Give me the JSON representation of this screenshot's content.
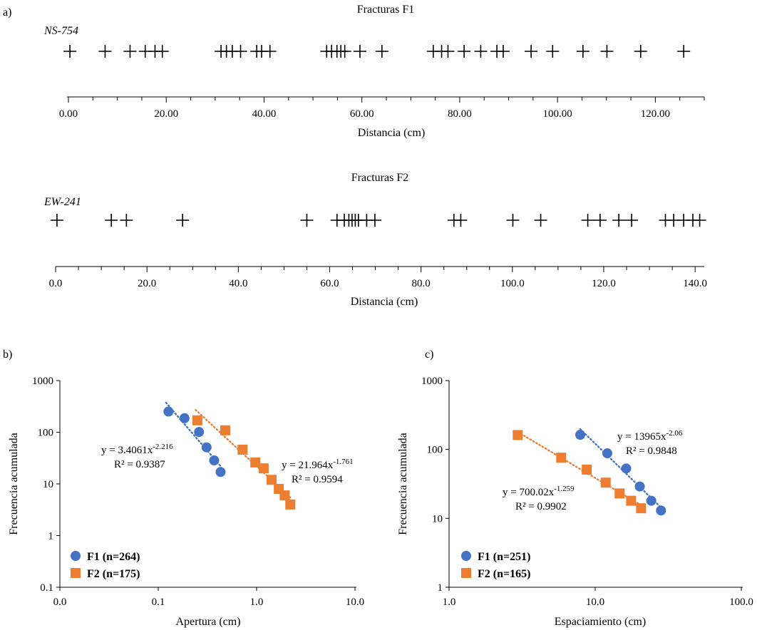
{
  "chart_data": [
    {
      "panel_label": "a)",
      "type": "scatter",
      "title": "Fracturas F1",
      "series_label": "NS-754",
      "xlabel": "Distancia (cm)",
      "xlim": [
        0,
        130
      ],
      "x_ticks": [
        "0.00",
        "20.00",
        "40.00",
        "60.00",
        "80.00",
        "100.00",
        "120.00"
      ],
      "x_tick_values": [
        0,
        20,
        40,
        60,
        80,
        100,
        120
      ],
      "minor_step": 5,
      "marker": "plus",
      "x": [
        0.3,
        7.5,
        12.6,
        15.7,
        17.7,
        19.2,
        31.2,
        32.3,
        33.5,
        35.2,
        38.5,
        39.5,
        41.2,
        52.8,
        53.8,
        54.9,
        55.7,
        56.5,
        59.6,
        64.1,
        74.6,
        76.3,
        77.6,
        80.9,
        84.3,
        87.6,
        88.9,
        94.6,
        99.0,
        105.2,
        110.1,
        117.0,
        125.8
      ]
    },
    {
      "panel_label": "",
      "type": "scatter",
      "title": "Fracturas F2",
      "series_label": "EW-241",
      "xlabel": "Distancia (cm)",
      "xlim": [
        0,
        142
      ],
      "x_ticks": [
        "0.0",
        "20.0",
        "40.0",
        "60.0",
        "80.0",
        "100.0",
        "120.0",
        "140.0"
      ],
      "x_tick_values": [
        0,
        20,
        40,
        60,
        80,
        100,
        120,
        140
      ],
      "minor_step": 5,
      "marker": "plus",
      "x": [
        0.3,
        12.2,
        15.5,
        27.8,
        55.0,
        61.6,
        63.2,
        64.2,
        64.9,
        65.6,
        66.3,
        68.1,
        69.9,
        87.2,
        88.7,
        100.1,
        106.2,
        116.5,
        119.2,
        123.3,
        126.1,
        133.5,
        135.3,
        137.5,
        139.5,
        141.0
      ]
    },
    {
      "panel_label": "b)",
      "type": "scatter",
      "xlabel": "Apertura (cm)",
      "ylabel": "Frecuencia acumulada",
      "x_log": true,
      "y_log": true,
      "xlim": [
        0.01,
        10
      ],
      "ylim": [
        0.1,
        1000
      ],
      "x_ticks": [
        "0.0",
        "0.1",
        "1.0",
        "10.0"
      ],
      "y_ticks": [
        "0.1",
        "1",
        "10",
        "100",
        "1000"
      ],
      "series": [
        {
          "name": "F1 (n=264)",
          "color": "#4472C4",
          "marker": "circle",
          "x": [
            0.127,
            0.185,
            0.26,
            0.31,
            0.37,
            0.43
          ],
          "y": [
            251,
            187,
            101,
            51,
            28.5,
            17
          ],
          "fit": {
            "coef": 3.4061,
            "exp": -2.216,
            "x_range": [
              0.12,
              0.43
            ]
          },
          "equation_base": "y = 3.4061x",
          "equation_exp": "-2.216",
          "r2": "R² = 0.9387"
        },
        {
          "name": "F2 (n=175)",
          "color": "#ED7D31",
          "marker": "square",
          "x": [
            0.25,
            0.48,
            0.72,
            0.97,
            1.18,
            1.42,
            1.68,
            1.93,
            2.2
          ],
          "y": [
            170,
            109,
            46,
            26,
            20,
            12,
            8,
            6,
            4
          ],
          "fit": {
            "coef": 21.964,
            "exp": -1.761,
            "x_range": [
              0.24,
              2.2
            ]
          },
          "equation_base": "y = 21.964x",
          "equation_exp": "-1.761",
          "r2": "R² = 0.9594"
        }
      ]
    },
    {
      "panel_label": "c)",
      "type": "scatter",
      "xlabel": "Espaciamiento (cm)",
      "ylabel": "Frecuencia acumulada",
      "x_log": true,
      "y_log": true,
      "xlim": [
        1,
        100
      ],
      "ylim": [
        1,
        1000
      ],
      "x_ticks": [
        "1.0",
        "10.0",
        "100.0"
      ],
      "y_ticks": [
        "1",
        "10",
        "100",
        "1000"
      ],
      "series": [
        {
          "name": "F1 (n=251)",
          "color": "#4472C4",
          "marker": "circle",
          "x": [
            7.9,
            12.1,
            16.3,
            20.2,
            24.2,
            28.2
          ],
          "y": [
            163,
            88,
            53,
            29,
            18,
            13
          ],
          "fit": {
            "coef": 13965,
            "exp": -2.06,
            "x_range": [
              7.9,
              28.2
            ]
          },
          "equation_base": "y = 13965x",
          "equation_exp": "-2.06",
          "r2": "R² = 0.9848"
        },
        {
          "name": "F2 (n=165)",
          "color": "#ED7D31",
          "marker": "square",
          "x": [
            2.95,
            5.85,
            8.75,
            11.8,
            14.7,
            17.6,
            20.6
          ],
          "y": [
            162,
            76,
            51,
            33,
            23,
            18,
            14
          ],
          "fit": {
            "coef": 700.02,
            "exp": -1.259,
            "x_range": [
              2.95,
              20.6
            ]
          },
          "equation_base": "y = 700.02x",
          "equation_exp": "-1.259",
          "r2": "R² = 0.9902"
        }
      ]
    }
  ]
}
